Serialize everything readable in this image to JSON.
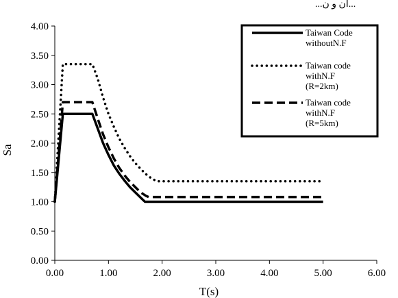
{
  "header_text": "...ان و ن...",
  "chart_data": {
    "type": "line",
    "xlabel": "T(s)",
    "ylabel": "Sa",
    "xlim": [
      0,
      6
    ],
    "ylim": [
      0,
      4
    ],
    "xticks": [
      "0.00",
      "1.00",
      "2.00",
      "3.00",
      "4.00",
      "5.00",
      "6.00"
    ],
    "yticks": [
      "0.00",
      "0.50",
      "1.00",
      "1.50",
      "2.00",
      "2.50",
      "3.00",
      "3.50",
      "4.00"
    ],
    "grid": false,
    "legend_position": "top-right",
    "series": [
      {
        "name": "Taiwan Code withoutN.F",
        "legend_lines": [
          "Taiwan Code",
          "withoutN.F"
        ],
        "style": "solid",
        "x": [
          0,
          0.15,
          0.7,
          0.8,
          0.9,
          1.0,
          1.1,
          1.2,
          1.3,
          1.4,
          1.5,
          1.6,
          1.68,
          5.0
        ],
        "y": [
          1.0,
          2.5,
          2.5,
          2.25,
          2.0,
          1.8,
          1.62,
          1.48,
          1.36,
          1.25,
          1.16,
          1.07,
          1.0,
          1.0
        ]
      },
      {
        "name": "Taiwan code withN.F (R=2km)",
        "legend_lines": [
          "Taiwan code",
          "withN.F",
          "(R=2km)"
        ],
        "style": "dotted",
        "x": [
          0,
          0.15,
          0.7,
          0.8,
          0.9,
          1.0,
          1.1,
          1.2,
          1.3,
          1.4,
          1.5,
          1.6,
          1.7,
          1.8,
          1.9,
          5.0
        ],
        "y": [
          1.0,
          3.35,
          3.35,
          3.1,
          2.78,
          2.5,
          2.28,
          2.08,
          1.92,
          1.78,
          1.66,
          1.56,
          1.47,
          1.4,
          1.35,
          1.35
        ]
      },
      {
        "name": "Taiwan code withN.F (R=5km)",
        "legend_lines": [
          "Taiwan code",
          "withN.F",
          "(R=5km)"
        ],
        "style": "dashed",
        "x": [
          0,
          0.15,
          0.7,
          0.8,
          0.9,
          1.0,
          1.1,
          1.2,
          1.3,
          1.4,
          1.5,
          1.6,
          1.7,
          1.75,
          5.0
        ],
        "y": [
          1.0,
          2.7,
          2.7,
          2.42,
          2.15,
          1.93,
          1.74,
          1.58,
          1.45,
          1.34,
          1.25,
          1.16,
          1.1,
          1.08,
          1.08
        ]
      }
    ]
  }
}
